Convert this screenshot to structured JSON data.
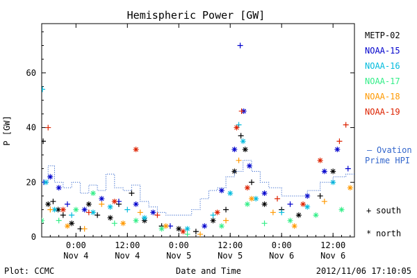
{
  "chart_data": {
    "type": "scatter",
    "title": "Hemispheric Power [GW]",
    "ylabel": "P [GW]",
    "xlabel": "Date and Time",
    "ylim": [
      0,
      78
    ],
    "xlim": [
      "2012-11-03T16:00",
      "2012-11-06T17:00"
    ],
    "grid": false,
    "legend_position": "right",
    "x_ticks": [
      {
        "x": "2012-11-04T00:00",
        "label_time": "0:00",
        "label_date": "Nov 4"
      },
      {
        "x": "2012-11-04T12:00",
        "label_time": "12:00",
        "label_date": "Nov 4"
      },
      {
        "x": "2012-11-05T00:00",
        "label_time": "0:00",
        "label_date": "Nov 5"
      },
      {
        "x": "2012-11-05T12:00",
        "label_time": "12:00",
        "label_date": "Nov 5"
      },
      {
        "x": "2012-11-06T00:00",
        "label_time": "0:00",
        "label_date": "Nov 6"
      },
      {
        "x": "2012-11-06T12:00",
        "label_time": "12:00",
        "label_date": "Nov 6"
      }
    ],
    "y_ticks": [
      0,
      20,
      40,
      60
    ],
    "symbol_legend": [
      {
        "symbol": "+",
        "label": "south"
      },
      {
        "symbol": "*",
        "label": "north"
      }
    ],
    "series": [
      {
        "name": "METP-02",
        "color": "#000000",
        "points": [
          {
            "x": "2012-11-03T16:20",
            "y": 35,
            "m": "+"
          },
          {
            "x": "2012-11-03T17:30",
            "y": 12,
            "m": "*"
          },
          {
            "x": "2012-11-03T18:40",
            "y": 13,
            "m": "+"
          },
          {
            "x": "2012-11-03T19:50",
            "y": 10,
            "m": "*"
          },
          {
            "x": "2012-11-03T21:00",
            "y": 8,
            "m": "+"
          },
          {
            "x": "2012-11-03T23:00",
            "y": 5,
            "m": "*"
          },
          {
            "x": "2012-11-04T01:00",
            "y": 3,
            "m": "+"
          },
          {
            "x": "2012-11-04T03:00",
            "y": 12,
            "m": "*"
          },
          {
            "x": "2012-11-04T05:00",
            "y": 8,
            "m": "+"
          },
          {
            "x": "2012-11-04T08:00",
            "y": 7,
            "m": "*"
          },
          {
            "x": "2012-11-04T10:00",
            "y": 12,
            "m": "+"
          },
          {
            "x": "2012-11-04T13:00",
            "y": 16,
            "m": "+"
          },
          {
            "x": "2012-11-04T16:00",
            "y": 6,
            "m": "*"
          },
          {
            "x": "2012-11-04T20:00",
            "y": 4,
            "m": "+"
          },
          {
            "x": "2012-11-05T00:00",
            "y": 3,
            "m": "*"
          },
          {
            "x": "2012-11-05T04:00",
            "y": 2,
            "m": "+"
          },
          {
            "x": "2012-11-05T08:00",
            "y": 6,
            "m": "*"
          },
          {
            "x": "2012-11-05T11:00",
            "y": 10,
            "m": "+"
          },
          {
            "x": "2012-11-05T13:00",
            "y": 24,
            "m": "*"
          },
          {
            "x": "2012-11-05T14:30",
            "y": 37,
            "m": "+"
          },
          {
            "x": "2012-11-05T15:30",
            "y": 32,
            "m": "*"
          },
          {
            "x": "2012-11-05T17:00",
            "y": 20,
            "m": "+"
          },
          {
            "x": "2012-11-05T20:00",
            "y": 12,
            "m": "*"
          },
          {
            "x": "2012-11-06T00:00",
            "y": 10,
            "m": "+"
          },
          {
            "x": "2012-11-06T04:00",
            "y": 8,
            "m": "*"
          },
          {
            "x": "2012-11-06T09:00",
            "y": 15,
            "m": "+"
          },
          {
            "x": "2012-11-06T12:00",
            "y": 24,
            "m": "*"
          }
        ]
      },
      {
        "name": "NOAA-15",
        "color": "#0000cc",
        "points": [
          {
            "x": "2012-11-03T16:30",
            "y": 20,
            "m": "+"
          },
          {
            "x": "2012-11-03T18:00",
            "y": 22,
            "m": "*"
          },
          {
            "x": "2012-11-03T20:00",
            "y": 18,
            "m": "*"
          },
          {
            "x": "2012-11-03T22:00",
            "y": 12,
            "m": "+"
          },
          {
            "x": "2012-11-04T02:00",
            "y": 10,
            "m": "*"
          },
          {
            "x": "2012-11-04T06:00",
            "y": 14,
            "m": "*"
          },
          {
            "x": "2012-11-04T10:00",
            "y": 13,
            "m": "+"
          },
          {
            "x": "2012-11-04T14:00",
            "y": 12,
            "m": "*"
          },
          {
            "x": "2012-11-04T18:00",
            "y": 9,
            "m": "*"
          },
          {
            "x": "2012-11-04T22:00",
            "y": 4,
            "m": "+"
          },
          {
            "x": "2012-11-05T06:00",
            "y": 4,
            "m": "*"
          },
          {
            "x": "2012-11-05T10:00",
            "y": 17,
            "m": "*"
          },
          {
            "x": "2012-11-05T13:00",
            "y": 32,
            "m": "*"
          },
          {
            "x": "2012-11-05T14:20",
            "y": 70,
            "m": "+"
          },
          {
            "x": "2012-11-05T15:10",
            "y": 46,
            "m": "*"
          },
          {
            "x": "2012-11-05T16:30",
            "y": 26,
            "m": "*"
          },
          {
            "x": "2012-11-05T20:00",
            "y": 16,
            "m": "*"
          },
          {
            "x": "2012-11-06T02:00",
            "y": 12,
            "m": "+"
          },
          {
            "x": "2012-11-06T06:00",
            "y": 15,
            "m": "*"
          },
          {
            "x": "2012-11-06T10:00",
            "y": 24,
            "m": "*"
          },
          {
            "x": "2012-11-06T13:00",
            "y": 32,
            "m": "*"
          },
          {
            "x": "2012-11-06T15:30",
            "y": 25,
            "m": "+"
          }
        ]
      },
      {
        "name": "NOAA-16",
        "color": "#00bbdd",
        "points": [
          {
            "x": "2012-11-03T16:10",
            "y": 54,
            "m": "+"
          },
          {
            "x": "2012-11-03T17:00",
            "y": 20,
            "m": "*"
          },
          {
            "x": "2012-11-03T19:00",
            "y": 10,
            "m": "*"
          },
          {
            "x": "2012-11-03T23:00",
            "y": 8,
            "m": "+"
          },
          {
            "x": "2012-11-04T04:00",
            "y": 9,
            "m": "*"
          },
          {
            "x": "2012-11-04T08:00",
            "y": 11,
            "m": "*"
          },
          {
            "x": "2012-11-04T12:00",
            "y": 10,
            "m": "+"
          },
          {
            "x": "2012-11-04T16:00",
            "y": 7,
            "m": "*"
          },
          {
            "x": "2012-11-05T02:00",
            "y": 3,
            "m": "*"
          },
          {
            "x": "2012-11-05T08:00",
            "y": 8,
            "m": "+"
          },
          {
            "x": "2012-11-05T12:00",
            "y": 16,
            "m": "*"
          },
          {
            "x": "2012-11-05T14:00",
            "y": 41,
            "m": "+"
          },
          {
            "x": "2012-11-05T15:00",
            "y": 35,
            "m": "*"
          },
          {
            "x": "2012-11-05T18:00",
            "y": 14,
            "m": "*"
          },
          {
            "x": "2012-11-06T00:00",
            "y": 9,
            "m": "+"
          },
          {
            "x": "2012-11-06T06:00",
            "y": 11,
            "m": "*"
          },
          {
            "x": "2012-11-06T12:00",
            "y": 20,
            "m": "*"
          }
        ]
      },
      {
        "name": "NOAA-17",
        "color": "#33ee88",
        "points": [
          {
            "x": "2012-11-03T16:00",
            "y": 6,
            "m": "*"
          },
          {
            "x": "2012-11-03T20:00",
            "y": 6,
            "m": "+"
          },
          {
            "x": "2012-11-04T00:00",
            "y": 10,
            "m": "*"
          },
          {
            "x": "2012-11-04T04:00",
            "y": 16,
            "m": "*"
          },
          {
            "x": "2012-11-04T09:00",
            "y": 5,
            "m": "+"
          },
          {
            "x": "2012-11-04T14:00",
            "y": 6,
            "m": "*"
          },
          {
            "x": "2012-11-04T20:00",
            "y": 3,
            "m": "*"
          },
          {
            "x": "2012-11-05T02:00",
            "y": 1,
            "m": "+"
          },
          {
            "x": "2012-11-05T10:00",
            "y": 4,
            "m": "*"
          },
          {
            "x": "2012-11-05T16:00",
            "y": 12,
            "m": "*"
          },
          {
            "x": "2012-11-05T20:00",
            "y": 5,
            "m": "+"
          },
          {
            "x": "2012-11-06T02:00",
            "y": 6,
            "m": "*"
          },
          {
            "x": "2012-11-06T08:00",
            "y": 8,
            "m": "*"
          },
          {
            "x": "2012-11-06T14:00",
            "y": 10,
            "m": "*"
          }
        ]
      },
      {
        "name": "NOAA-18",
        "color": "#ff9900",
        "points": [
          {
            "x": "2012-11-03T18:00",
            "y": 10,
            "m": "+"
          },
          {
            "x": "2012-11-03T22:00",
            "y": 4,
            "m": "*"
          },
          {
            "x": "2012-11-04T02:00",
            "y": 3,
            "m": "+"
          },
          {
            "x": "2012-11-04T06:00",
            "y": 12,
            "m": "+"
          },
          {
            "x": "2012-11-04T11:00",
            "y": 5,
            "m": "*"
          },
          {
            "x": "2012-11-04T15:00",
            "y": 9,
            "m": "+"
          },
          {
            "x": "2012-11-04T21:00",
            "y": 4,
            "m": "*"
          },
          {
            "x": "2012-11-05T05:00",
            "y": 1,
            "m": "+"
          },
          {
            "x": "2012-11-05T11:00",
            "y": 6,
            "m": "+"
          },
          {
            "x": "2012-11-05T14:00",
            "y": 28,
            "m": "+"
          },
          {
            "x": "2012-11-05T17:00",
            "y": 14,
            "m": "*"
          },
          {
            "x": "2012-11-05T22:00",
            "y": 9,
            "m": "+"
          },
          {
            "x": "2012-11-06T03:00",
            "y": 4,
            "m": "*"
          },
          {
            "x": "2012-11-06T10:00",
            "y": 13,
            "m": "+"
          },
          {
            "x": "2012-11-06T16:00",
            "y": 18,
            "m": "*"
          }
        ]
      },
      {
        "name": "NOAA-19",
        "color": "#dd2200",
        "points": [
          {
            "x": "2012-11-03T17:30",
            "y": 40,
            "m": "+"
          },
          {
            "x": "2012-11-03T21:00",
            "y": 10,
            "m": "*"
          },
          {
            "x": "2012-11-04T03:00",
            "y": 9,
            "m": "+"
          },
          {
            "x": "2012-11-04T09:00",
            "y": 13,
            "m": "*"
          },
          {
            "x": "2012-11-04T14:00",
            "y": 32,
            "m": "*"
          },
          {
            "x": "2012-11-04T19:00",
            "y": 8,
            "m": "+"
          },
          {
            "x": "2012-11-05T01:00",
            "y": 2,
            "m": "*"
          },
          {
            "x": "2012-11-05T09:00",
            "y": 9,
            "m": "*"
          },
          {
            "x": "2012-11-05T13:30",
            "y": 40,
            "m": "*"
          },
          {
            "x": "2012-11-05T14:40",
            "y": 46,
            "m": "+"
          },
          {
            "x": "2012-11-05T16:00",
            "y": 18,
            "m": "*"
          },
          {
            "x": "2012-11-05T23:00",
            "y": 14,
            "m": "+"
          },
          {
            "x": "2012-11-06T05:00",
            "y": 12,
            "m": "*"
          },
          {
            "x": "2012-11-06T09:00",
            "y": 28,
            "m": "*"
          },
          {
            "x": "2012-11-06T13:30",
            "y": 35,
            "m": "+"
          },
          {
            "x": "2012-11-06T15:00",
            "y": 41,
            "m": "+"
          }
        ]
      },
      {
        "name": "Ovation Prime HPI",
        "color": "#3366cc",
        "style": "dotted-step",
        "points": [
          {
            "x": "2012-11-03T16:00",
            "y": 20
          },
          {
            "x": "2012-11-03T17:30",
            "y": 26
          },
          {
            "x": "2012-11-03T19:00",
            "y": 20
          },
          {
            "x": "2012-11-03T21:00",
            "y": 18
          },
          {
            "x": "2012-11-03T23:00",
            "y": 20
          },
          {
            "x": "2012-11-04T01:00",
            "y": 16
          },
          {
            "x": "2012-11-04T03:00",
            "y": 19
          },
          {
            "x": "2012-11-04T05:00",
            "y": 17
          },
          {
            "x": "2012-11-04T07:00",
            "y": 23
          },
          {
            "x": "2012-11-04T09:00",
            "y": 18
          },
          {
            "x": "2012-11-04T11:00",
            "y": 17
          },
          {
            "x": "2012-11-04T13:00",
            "y": 19
          },
          {
            "x": "2012-11-04T15:00",
            "y": 13
          },
          {
            "x": "2012-11-04T17:00",
            "y": 11
          },
          {
            "x": "2012-11-04T19:00",
            "y": 9
          },
          {
            "x": "2012-11-04T21:00",
            "y": 8
          },
          {
            "x": "2012-11-05T00:00",
            "y": 8
          },
          {
            "x": "2012-11-05T03:00",
            "y": 10
          },
          {
            "x": "2012-11-05T05:00",
            "y": 14
          },
          {
            "x": "2012-11-05T07:00",
            "y": 17
          },
          {
            "x": "2012-11-05T09:00",
            "y": 18
          },
          {
            "x": "2012-11-05T11:00",
            "y": 22
          },
          {
            "x": "2012-11-05T13:00",
            "y": 24
          },
          {
            "x": "2012-11-05T15:00",
            "y": 28
          },
          {
            "x": "2012-11-05T17:00",
            "y": 24
          },
          {
            "x": "2012-11-05T19:00",
            "y": 20
          },
          {
            "x": "2012-11-05T21:00",
            "y": 18
          },
          {
            "x": "2012-11-06T00:00",
            "y": 15
          },
          {
            "x": "2012-11-06T03:00",
            "y": 15
          },
          {
            "x": "2012-11-06T06:00",
            "y": 17
          },
          {
            "x": "2012-11-06T09:00",
            "y": 20
          },
          {
            "x": "2012-11-06T12:00",
            "y": 22
          },
          {
            "x": "2012-11-06T15:00",
            "y": 23
          },
          {
            "x": "2012-11-06T17:00",
            "y": 23
          }
        ]
      }
    ]
  },
  "legend": {
    "satellites": [
      "METP-02",
      "NOAA-15",
      "NOAA-16",
      "NOAA-17",
      "NOAA-18",
      "NOAA-19"
    ],
    "model_line1": "Ovation",
    "model_line2": "Prime HPI",
    "model_dash": "–"
  },
  "footer": {
    "plot_credit": "Plot: CCMC",
    "timestamp": "2012/11/06 17:10:05"
  }
}
